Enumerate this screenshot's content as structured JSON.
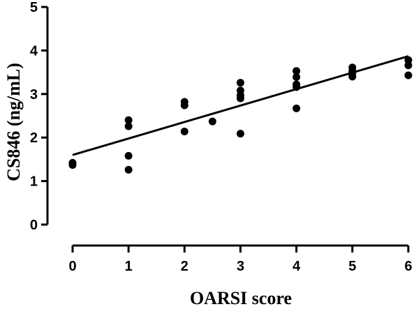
{
  "chart_data": {
    "type": "scatter",
    "xlabel": "OARSI score",
    "ylabel": "CS846 (ng/mL)",
    "xlim": [
      0,
      6
    ],
    "ylim": [
      0,
      5
    ],
    "x_ticks": [
      "0",
      "1",
      "2",
      "3",
      "4",
      "5",
      "6"
    ],
    "y_ticks": [
      "0",
      "1",
      "2",
      "3",
      "4",
      "5"
    ],
    "grid": false,
    "points": [
      {
        "x": 0,
        "y": 1.42
      },
      {
        "x": 0,
        "y": 1.37
      },
      {
        "x": 1,
        "y": 2.4
      },
      {
        "x": 1,
        "y": 2.26
      },
      {
        "x": 1,
        "y": 1.58
      },
      {
        "x": 1,
        "y": 1.26
      },
      {
        "x": 2,
        "y": 2.82
      },
      {
        "x": 2,
        "y": 2.74
      },
      {
        "x": 2,
        "y": 2.14
      },
      {
        "x": 2.5,
        "y": 2.37
      },
      {
        "x": 3,
        "y": 3.26
      },
      {
        "x": 3,
        "y": 3.08
      },
      {
        "x": 3,
        "y": 2.97
      },
      {
        "x": 3,
        "y": 2.9
      },
      {
        "x": 3,
        "y": 2.09
      },
      {
        "x": 4,
        "y": 3.53
      },
      {
        "x": 4,
        "y": 3.39
      },
      {
        "x": 4,
        "y": 3.22
      },
      {
        "x": 4,
        "y": 3.16
      },
      {
        "x": 4,
        "y": 2.67
      },
      {
        "x": 5,
        "y": 3.61
      },
      {
        "x": 5,
        "y": 3.53
      },
      {
        "x": 5,
        "y": 3.47
      },
      {
        "x": 5,
        "y": 3.4
      },
      {
        "x": 6,
        "y": 3.78
      },
      {
        "x": 6,
        "y": 3.66
      },
      {
        "x": 6,
        "y": 3.43
      }
    ],
    "regression_line": {
      "x": [
        0,
        6
      ],
      "y": [
        1.6,
        3.87
      ]
    }
  }
}
